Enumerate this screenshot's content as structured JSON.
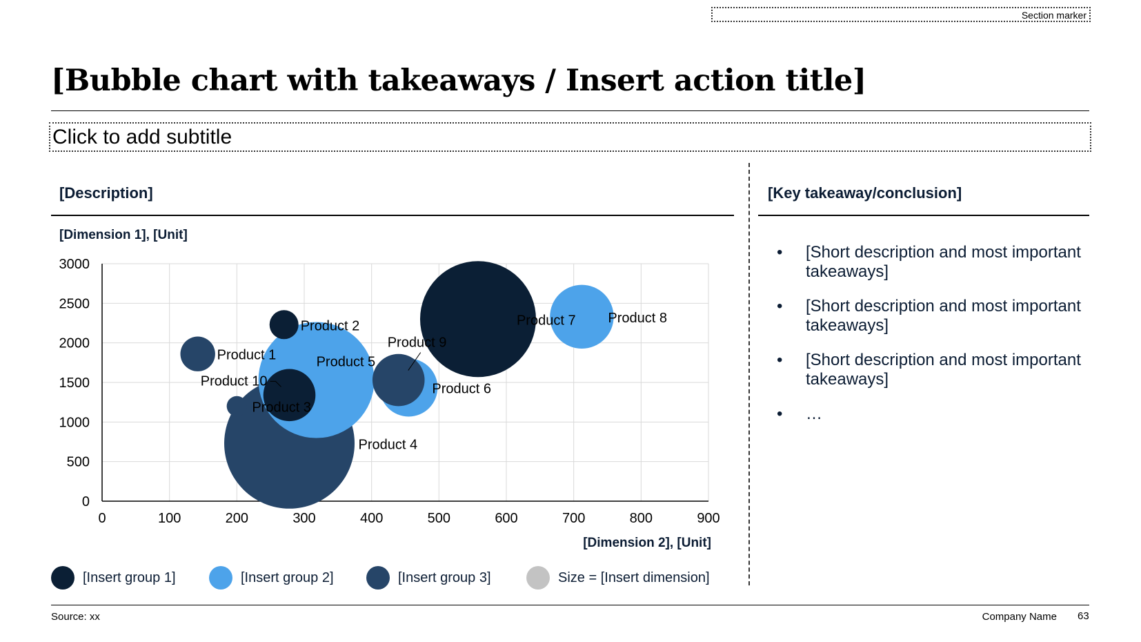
{
  "header": {
    "section_marker": "Section marker",
    "title": "[Bubble chart with takeaways / Insert action title]",
    "subtitle": "Click to add subtitle"
  },
  "left_panel": {
    "heading": "[Description]"
  },
  "right_panel": {
    "heading": "[Key takeaway/conclusion]",
    "bullet_glyph": "•",
    "bullets": [
      "[Short description and most important takeaways]",
      "[Short description and most important takeaways]",
      "[Short description and most important takeaways]",
      "…"
    ]
  },
  "legend": {
    "items": [
      {
        "label": "[Insert group 1]",
        "color": "#0b1f35"
      },
      {
        "label": "[Insert group 2]",
        "color": "#4da3ea"
      },
      {
        "label": "[Insert group 3]",
        "color": "#264568"
      },
      {
        "label": "Size = [Insert dimension]",
        "color": "#c3c3c3"
      }
    ]
  },
  "footer": {
    "source": "Source: xx",
    "company": "Company Name",
    "page": "63"
  },
  "colors": {
    "group1": "#0b1f35",
    "group2": "#4da3ea",
    "group3": "#264568",
    "grid": "#d9d9d9"
  },
  "chart_data": {
    "type": "scatter",
    "subtype": "bubble",
    "title": "",
    "xlabel": "[Dimension 2], [Unit]",
    "ylabel": "[Dimension 1], [Unit]",
    "xlim": [
      0,
      900
    ],
    "ylim": [
      0,
      3000
    ],
    "x_ticks": [
      0,
      100,
      200,
      300,
      400,
      500,
      600,
      700,
      800,
      900
    ],
    "y_ticks": [
      0,
      500,
      1000,
      1500,
      2000,
      2500,
      3000
    ],
    "grid": true,
    "legend": "bottom",
    "points": [
      {
        "label": "Product 1",
        "x": 142,
        "y": 1860,
        "size": 1.2,
        "group": 3
      },
      {
        "label": "Product 2",
        "x": 270,
        "y": 2230,
        "size": 1.0,
        "group": 1
      },
      {
        "label": "Product 3",
        "x": 200,
        "y": 1200,
        "size": 0.7,
        "group": 3
      },
      {
        "label": "Product 4",
        "x": 278,
        "y": 730,
        "size": 4.5,
        "group": 3
      },
      {
        "label": "Product 5",
        "x": 318,
        "y": 1530,
        "size": 4.0,
        "group": 2
      },
      {
        "label": "Product 6",
        "x": 455,
        "y": 1435,
        "size": 2.0,
        "group": 2
      },
      {
        "label": "Product 7",
        "x": 558,
        "y": 2300,
        "size": 4.0,
        "group": 1
      },
      {
        "label": "Product 8",
        "x": 712,
        "y": 2330,
        "size": 2.2,
        "group": 2
      },
      {
        "label": "Product 9",
        "x": 440,
        "y": 1530,
        "size": 1.8,
        "group": 3
      },
      {
        "label": "Product 10",
        "x": 278,
        "y": 1340,
        "size": 1.8,
        "group": 1
      }
    ]
  }
}
